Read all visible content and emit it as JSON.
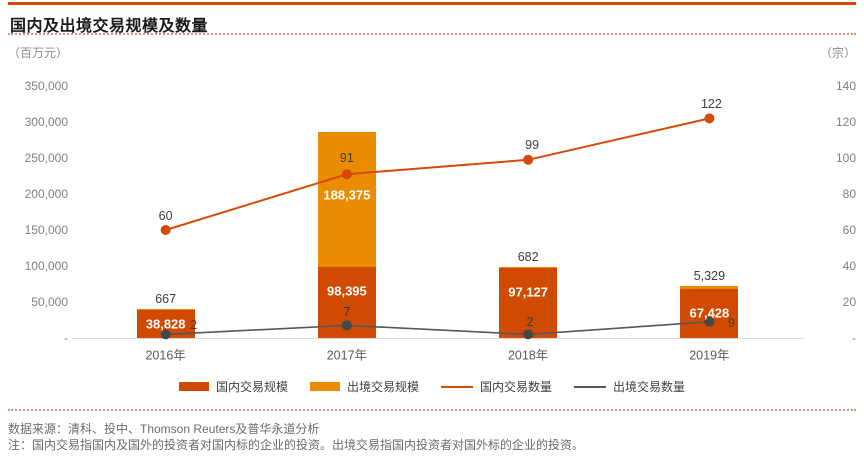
{
  "header": {
    "title": "国内及出境交易规模及数量"
  },
  "axes": {
    "left_unit": "（百万元）",
    "right_unit": "（宗）",
    "left_ticks": [
      "350,000",
      "300,000",
      "250,000",
      "200,000",
      "150,000",
      "100,000",
      "50,000",
      "-"
    ],
    "right_ticks": [
      "140",
      "120",
      "100",
      "80",
      "60",
      "40",
      "20",
      "-"
    ]
  },
  "chart_data": {
    "type": "bar",
    "subtype": "stacked-bar-with-lines-dual-axis",
    "categories": [
      "2016年",
      "2017年",
      "2018年",
      "2019年"
    ],
    "left_axis": {
      "label": "（百万元）",
      "min": 0,
      "max": 350000,
      "tick_step": 50000
    },
    "right_axis": {
      "label": "（宗）",
      "min": 0,
      "max": 140,
      "tick_step": 20
    },
    "grid": false,
    "legend_position": "bottom",
    "series": [
      {
        "name": "国内交易规模",
        "type": "bar",
        "axis": "left",
        "color": "#D04A02",
        "values": [
          38828,
          98395,
          97127,
          67428
        ]
      },
      {
        "name": "出境交易规模",
        "type": "bar",
        "axis": "left",
        "color": "#EB8C00",
        "values": [
          667,
          188375,
          682,
          5329
        ]
      },
      {
        "name": "国内交易数量",
        "type": "line",
        "axis": "right",
        "color": "#D54A06",
        "values": [
          60,
          91,
          99,
          122
        ],
        "label_offsets": [
          {
            "dx": 0,
            "dy": -14
          },
          {
            "dx": 0,
            "dy": -16
          },
          {
            "dx": 4,
            "dy": -15
          },
          {
            "dx": 2,
            "dy": -14
          }
        ]
      },
      {
        "name": "出境交易数量",
        "type": "line",
        "axis": "right",
        "color": "#53565A",
        "values": [
          2,
          7,
          2,
          9
        ],
        "label_offsets": [
          {
            "dx": 28,
            "dy": -9
          },
          {
            "dx": 0,
            "dy": -13
          },
          {
            "dx": 2,
            "dy": -12
          },
          {
            "dx": 22,
            "dy": 1
          }
        ]
      }
    ]
  },
  "legend": [
    {
      "label": "国内交易规模",
      "swatch": "bar",
      "color": "#D04A02"
    },
    {
      "label": "出境交易规模",
      "swatch": "bar",
      "color": "#EB8C00"
    },
    {
      "label": "国内交易数量",
      "swatch": "line",
      "color": "#D54A06"
    },
    {
      "label": "出境交易数量",
      "swatch": "line",
      "color": "#53565A"
    }
  ],
  "footer": {
    "source": "数据来源：清科、投中、Thomson Reuters及普华永道分析",
    "note": "注：国内交易指国内及国外的投资者对国内标的企业的投资。出境交易指国内投资者对国外标的企业的投资。"
  }
}
